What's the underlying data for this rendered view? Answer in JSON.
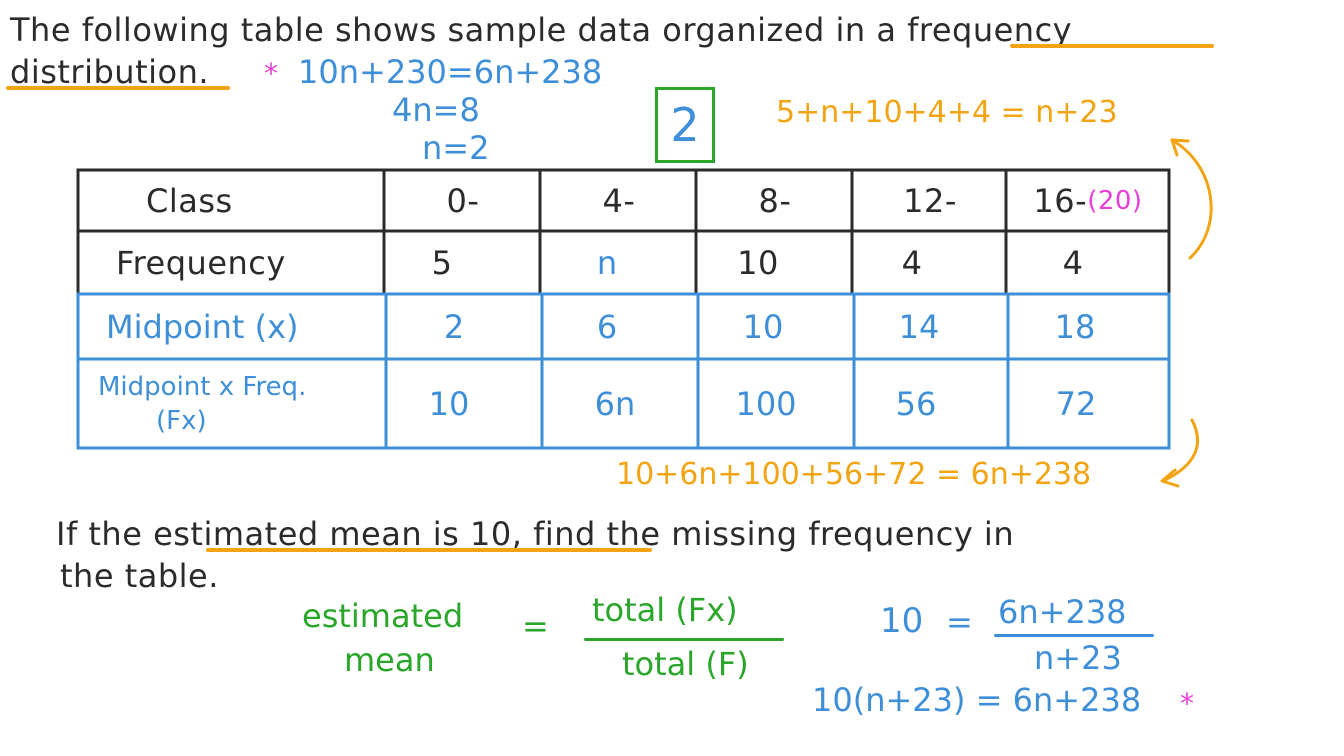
{
  "intro": {
    "line1_pre": "The following table shows sample data organized in a",
    "line1_term": "frequency",
    "line2_term": "distribution",
    "line2_post": "."
  },
  "work_top": {
    "star": "*",
    "eq1": "10n+230=6n+238",
    "eq2": "4n=8",
    "eq3": "n=2",
    "answer": "2",
    "sum_freq": "5+n+10+4+4 = n+23"
  },
  "table": {
    "header_label": "Class",
    "classes": [
      "0-",
      "4-",
      "8-",
      "12-",
      "16-"
    ],
    "class_note": "(20)",
    "freq_label": "Frequency",
    "frequencies": [
      "5",
      "n",
      "10",
      "4",
      "4"
    ],
    "midpoint_label": "Midpoint (x)",
    "midpoints": [
      "2",
      "6",
      "10",
      "14",
      "18"
    ],
    "fx_label_line1": "Midpoint x Freq.",
    "fx_label_line2": "(Fx)",
    "fx_values": [
      "10",
      "6n",
      "100",
      "56",
      "72"
    ]
  },
  "sum_fx": "10+6n+100+56+72 = 6n+238",
  "question": {
    "line1_pre": "If the",
    "line1_term": "estimated mean is 10",
    "line1_post": ", find the missing frequency in",
    "line2": "the table."
  },
  "formula": {
    "lhs_line1": "estimated",
    "lhs_line2": "mean",
    "equals": "=",
    "numerator": "total (Fx)",
    "denominator": "total (F)"
  },
  "substitution": {
    "lhs": "10",
    "equals": "=",
    "numerator": "6n+238",
    "denominator": "n+23",
    "cross": "10(n+23) = 6n+238",
    "star": "*"
  },
  "colors": {
    "ink": "#2b2b2b",
    "blue": "#3f8fd8",
    "orange": "#f2a413",
    "pink": "#e83fd6",
    "green": "#2aa62a"
  }
}
